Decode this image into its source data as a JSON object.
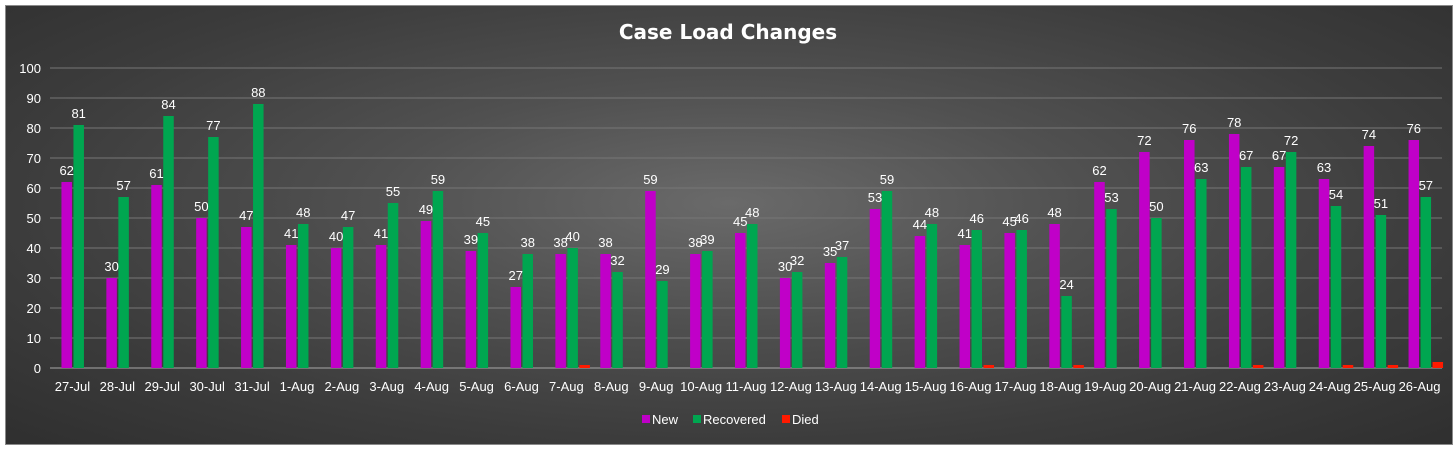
{
  "chart_data": {
    "type": "bar",
    "title": "Case Load Changes",
    "xlabel": "",
    "ylabel": "",
    "ylim": [
      0,
      100
    ],
    "yticks": [
      0,
      10,
      20,
      30,
      40,
      50,
      60,
      70,
      80,
      90,
      100
    ],
    "grid": true,
    "legend_position": "bottom",
    "categories": [
      "27-Jul",
      "28-Jul",
      "29-Jul",
      "30-Jul",
      "31-Jul",
      "1-Aug",
      "2-Aug",
      "3-Aug",
      "4-Aug",
      "5-Aug",
      "6-Aug",
      "7-Aug",
      "8-Aug",
      "9-Aug",
      "10-Aug",
      "11-Aug",
      "12-Aug",
      "13-Aug",
      "14-Aug",
      "15-Aug",
      "16-Aug",
      "17-Aug",
      "18-Aug",
      "19-Aug",
      "20-Aug",
      "21-Aug",
      "22-Aug",
      "23-Aug",
      "24-Aug",
      "25-Aug",
      "26-Aug"
    ],
    "series": [
      {
        "name": "New",
        "color": "#c000c8",
        "show_labels": true,
        "values": [
          62,
          30,
          61,
          50,
          47,
          41,
          40,
          41,
          49,
          39,
          27,
          38,
          38,
          59,
          38,
          45,
          30,
          35,
          53,
          44,
          41,
          45,
          48,
          62,
          72,
          76,
          78,
          67,
          63,
          74,
          76
        ]
      },
      {
        "name": "Recovered",
        "color": "#00a650",
        "show_labels": true,
        "values": [
          81,
          57,
          84,
          77,
          88,
          48,
          47,
          55,
          59,
          45,
          38,
          40,
          32,
          29,
          39,
          48,
          32,
          37,
          59,
          48,
          46,
          46,
          24,
          53,
          50,
          63,
          67,
          72,
          54,
          51,
          57
        ]
      },
      {
        "name": "Died",
        "color": "#ff1a00",
        "show_labels": false,
        "values": [
          0,
          0,
          0,
          0,
          0,
          0,
          0,
          0,
          0,
          0,
          0,
          1,
          0,
          0,
          0,
          0,
          0,
          0,
          0,
          0,
          1,
          0,
          1,
          0,
          0,
          0,
          1,
          0,
          1,
          1,
          2
        ]
      }
    ]
  }
}
